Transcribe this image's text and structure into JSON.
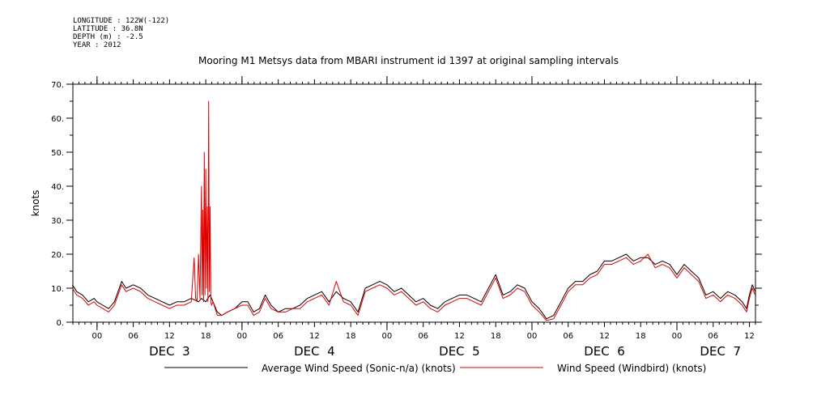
{
  "header": {
    "meta_lines": [
      "LONGITUDE : 122W(-122)",
      "LATITUDE : 36.8N",
      "DEPTH (m) : -2.5",
      "YEAR : 2012"
    ],
    "title": "Mooring M1 Metsys data from MBARI instrument id 1397 at original sampling intervals"
  },
  "chart_data": {
    "type": "line",
    "title": "Mooring M1 Metsys data from MBARI instrument id 1397 at original sampling intervals",
    "ylabel": "knots",
    "xlabel": "",
    "ylim": [
      0,
      70
    ],
    "y_ticks": [
      0,
      10,
      20,
      30,
      40,
      50,
      60,
      70
    ],
    "y_tick_labels": [
      "0.",
      "10.",
      "20.",
      "30.",
      "40.",
      "50.",
      "60.",
      "70."
    ],
    "x_range_hours": [
      -4,
      13
    ],
    "x_ticks": [
      {
        "day": 3,
        "hour": 0,
        "label": "00"
      },
      {
        "day": 3,
        "hour": 6,
        "label": "06"
      },
      {
        "day": 3,
        "hour": 12,
        "label": "12"
      },
      {
        "day": 3,
        "hour": 18,
        "label": "18"
      },
      {
        "day": 4,
        "hour": 0,
        "label": "00"
      },
      {
        "day": 4,
        "hour": 6,
        "label": "06"
      },
      {
        "day": 4,
        "hour": 12,
        "label": "12"
      },
      {
        "day": 4,
        "hour": 18,
        "label": "18"
      },
      {
        "day": 5,
        "hour": 0,
        "label": "00"
      },
      {
        "day": 5,
        "hour": 6,
        "label": "06"
      },
      {
        "day": 5,
        "hour": 12,
        "label": "12"
      },
      {
        "day": 5,
        "hour": 18,
        "label": "18"
      },
      {
        "day": 6,
        "hour": 0,
        "label": "00"
      },
      {
        "day": 6,
        "hour": 6,
        "label": "06"
      },
      {
        "day": 6,
        "hour": 12,
        "label": "12"
      },
      {
        "day": 6,
        "hour": 18,
        "label": "18"
      },
      {
        "day": 7,
        "hour": 0,
        "label": "00"
      },
      {
        "day": 7,
        "hour": 6,
        "label": "06"
      },
      {
        "day": 7,
        "hour": 12,
        "label": "12"
      }
    ],
    "day_labels": [
      {
        "label": "DEC  3",
        "day": 3,
        "hour": 0
      },
      {
        "label": "DEC  4",
        "day": 4,
        "hour": 0
      },
      {
        "label": "DEC  5",
        "day": 5,
        "hour": 0
      },
      {
        "label": "DEC  6",
        "day": 6,
        "hour": 0
      },
      {
        "label": "DEC  7",
        "day": 7,
        "hour": 0
      }
    ],
    "day_label_positions": [
      3.5,
      4.5,
      5.5,
      6.5,
      7.3
    ],
    "series": [
      {
        "name": "Average Wind Speed (Sonic-n/a) (knots)",
        "color": "#000000",
        "x_days": [
          2.83,
          2.86,
          2.9,
          2.94,
          2.98,
          3.0,
          3.04,
          3.08,
          3.12,
          3.17,
          3.2,
          3.25,
          3.3,
          3.35,
          3.4,
          3.45,
          3.5,
          3.55,
          3.6,
          3.65,
          3.7,
          3.72,
          3.75,
          3.78,
          3.8,
          3.83,
          3.86,
          3.9,
          3.95,
          4.0,
          4.04,
          4.08,
          4.12,
          4.16,
          4.2,
          4.25,
          4.3,
          4.35,
          4.4,
          4.45,
          4.5,
          4.55,
          4.6,
          4.65,
          4.7,
          4.75,
          4.8,
          4.85,
          4.9,
          4.95,
          5.0,
          5.05,
          5.1,
          5.15,
          5.2,
          5.25,
          5.3,
          5.35,
          5.4,
          5.45,
          5.5,
          5.55,
          5.6,
          5.65,
          5.7,
          5.75,
          5.8,
          5.85,
          5.9,
          5.95,
          6.0,
          6.05,
          6.1,
          6.15,
          6.2,
          6.25,
          6.3,
          6.35,
          6.4,
          6.45,
          6.5,
          6.55,
          6.6,
          6.65,
          6.7,
          6.75,
          6.8,
          6.85,
          6.9,
          6.95,
          7.0,
          7.05,
          7.1,
          7.15,
          7.2,
          7.25,
          7.3,
          7.35,
          7.4,
          7.45,
          7.48,
          7.5,
          7.52,
          7.54
        ],
        "values": [
          11,
          9,
          8,
          6,
          7,
          6,
          5,
          4,
          6,
          12,
          10,
          11,
          10,
          8,
          7,
          6,
          5,
          6,
          6,
          7,
          6,
          7,
          6,
          8,
          6,
          3,
          2,
          3,
          4,
          6,
          6,
          3,
          4,
          8,
          5,
          3,
          4,
          4,
          5,
          7,
          8,
          9,
          6,
          9,
          7,
          6,
          3,
          10,
          11,
          12,
          11,
          9,
          10,
          8,
          6,
          7,
          5,
          4,
          6,
          7,
          8,
          8,
          7,
          6,
          10,
          14,
          8,
          9,
          11,
          10,
          6,
          4,
          1,
          2,
          6,
          10,
          12,
          12,
          14,
          15,
          18,
          18,
          19,
          20,
          18,
          19,
          19,
          17,
          18,
          17,
          14,
          17,
          15,
          13,
          8,
          9,
          7,
          9,
          8,
          6,
          4,
          8,
          11,
          9
        ]
      },
      {
        "name": "Wind Speed (Windbird) (knots)",
        "color": "#e00000",
        "x_days": [
          2.83,
          2.86,
          2.9,
          2.94,
          2.98,
          3.0,
          3.04,
          3.08,
          3.12,
          3.17,
          3.2,
          3.25,
          3.3,
          3.35,
          3.4,
          3.45,
          3.5,
          3.55,
          3.6,
          3.65,
          3.67,
          3.68,
          3.69,
          3.7,
          3.71,
          3.72,
          3.725,
          3.73,
          3.735,
          3.74,
          3.745,
          3.75,
          3.755,
          3.76,
          3.765,
          3.77,
          3.775,
          3.78,
          3.785,
          3.79,
          3.8,
          3.83,
          3.86,
          3.9,
          3.95,
          4.0,
          4.04,
          4.08,
          4.12,
          4.16,
          4.2,
          4.25,
          4.3,
          4.35,
          4.4,
          4.45,
          4.5,
          4.55,
          4.6,
          4.65,
          4.7,
          4.75,
          4.8,
          4.85,
          4.9,
          4.95,
          5.0,
          5.05,
          5.1,
          5.15,
          5.2,
          5.25,
          5.3,
          5.35,
          5.4,
          5.45,
          5.5,
          5.55,
          5.6,
          5.65,
          5.7,
          5.75,
          5.8,
          5.85,
          5.9,
          5.95,
          6.0,
          6.05,
          6.1,
          6.15,
          6.2,
          6.25,
          6.3,
          6.35,
          6.4,
          6.45,
          6.5,
          6.55,
          6.6,
          6.65,
          6.7,
          6.75,
          6.8,
          6.85,
          6.9,
          6.95,
          7.0,
          7.05,
          7.1,
          7.15,
          7.2,
          7.25,
          7.3,
          7.35,
          7.4,
          7.45,
          7.48,
          7.5,
          7.52,
          7.54
        ],
        "values": [
          10,
          8,
          7,
          5,
          6,
          5,
          4,
          3,
          5,
          11,
          9,
          10,
          9,
          7,
          6,
          5,
          4,
          5,
          5,
          6,
          19,
          7,
          6,
          20,
          7,
          40,
          8,
          33,
          6,
          50,
          8,
          45,
          10,
          34,
          6,
          65,
          9,
          34,
          6,
          5,
          6,
          2,
          2,
          3,
          4,
          5,
          5,
          2,
          3,
          7,
          4,
          3,
          3,
          4,
          4,
          6,
          7,
          8,
          5,
          12,
          6,
          5,
          2,
          9,
          10,
          11,
          10,
          8,
          9,
          7,
          5,
          6,
          4,
          3,
          5,
          6,
          7,
          7,
          6,
          5,
          9,
          13,
          7,
          8,
          10,
          9,
          5,
          3,
          0.5,
          1,
          5,
          9,
          11,
          11,
          13,
          14,
          17,
          17,
          18,
          19,
          17,
          18,
          20,
          16,
          17,
          16,
          13,
          16,
          14,
          12,
          7,
          8,
          6,
          8,
          7,
          5,
          3,
          7,
          10,
          8
        ]
      }
    ],
    "legend_placement": "bottom",
    "grid": false
  }
}
